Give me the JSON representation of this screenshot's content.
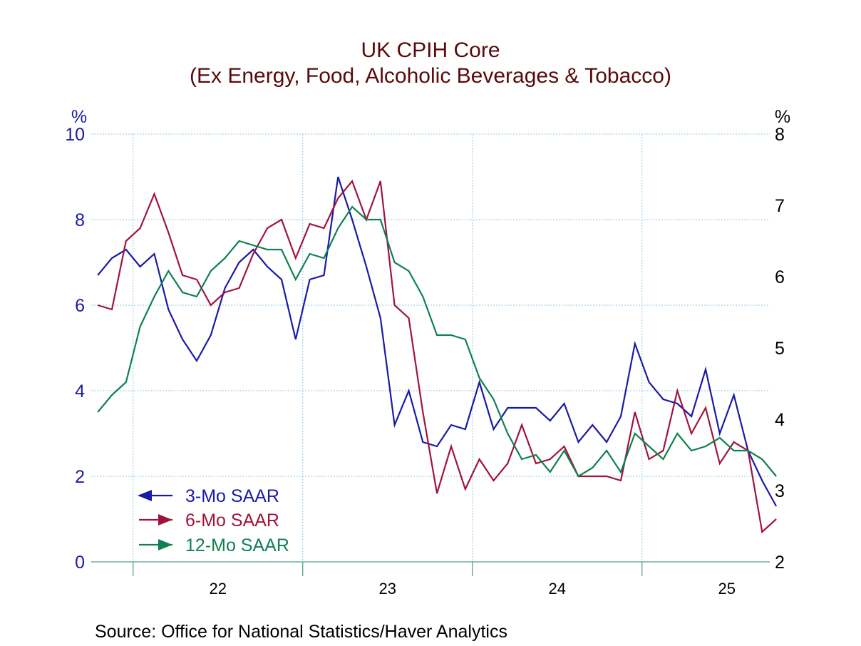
{
  "chart_data": {
    "type": "line",
    "title": "UK CPIH Core",
    "subtitle": "(Ex Energy, Food, Alcoholic Beverages & Tobacco)",
    "ylabel_left": "%",
    "ylabel_right": "%",
    "ylim_left": [
      0,
      10
    ],
    "yticks_left": [
      "0",
      "2",
      "4",
      "6",
      "8",
      "10"
    ],
    "ylim_right": [
      2,
      8
    ],
    "yticks_right": [
      "2",
      "3",
      "4",
      "5",
      "6",
      "7",
      "8"
    ],
    "x_start": 2021.42,
    "x_end": 2025.42,
    "year_boundaries": [
      2021.667,
      2022.667,
      2023.667,
      2024.667
    ],
    "x_tick_labels": [
      {
        "label": "22",
        "x": 2022.167
      },
      {
        "label": "23",
        "x": 2023.167
      },
      {
        "label": "24",
        "x": 2024.167
      },
      {
        "label": "25",
        "x": 2025.167
      }
    ],
    "x_dates": [
      "2021-06",
      "2021-07",
      "2021-08",
      "2021-09",
      "2021-10",
      "2021-11",
      "2021-12",
      "2022-01",
      "2022-02",
      "2022-03",
      "2022-04",
      "2022-05",
      "2022-06",
      "2022-07",
      "2022-08",
      "2022-09",
      "2022-10",
      "2022-11",
      "2022-12",
      "2023-01",
      "2023-02",
      "2023-03",
      "2023-04",
      "2023-05",
      "2023-06",
      "2023-07",
      "2023-08",
      "2023-09",
      "2023-10",
      "2023-11",
      "2023-12",
      "2024-01",
      "2024-02",
      "2024-03",
      "2024-04",
      "2024-05",
      "2024-06",
      "2024-07",
      "2024-08",
      "2024-09",
      "2024-10",
      "2024-11",
      "2024-12",
      "2025-01",
      "2025-02",
      "2025-03",
      "2025-04",
      "2025-05",
      "2025-06"
    ],
    "series": [
      {
        "name": "3-Mo SAAR",
        "axis": "left",
        "color": "#1a1aa6",
        "values": [
          6.7,
          7.1,
          7.3,
          6.9,
          7.2,
          5.9,
          5.2,
          4.7,
          5.3,
          6.4,
          7.0,
          7.3,
          6.9,
          6.6,
          5.2,
          6.6,
          6.7,
          9.0,
          8.0,
          6.9,
          5.7,
          3.2,
          4.0,
          2.8,
          2.7,
          3.2,
          3.1,
          4.2,
          3.1,
          3.6,
          3.6,
          3.6,
          3.3,
          3.7,
          2.8,
          3.2,
          2.8,
          3.4,
          5.1,
          4.2,
          3.8,
          3.7,
          3.4,
          4.5,
          3.0,
          3.9,
          2.6,
          1.9,
          1.3
        ]
      },
      {
        "name": "6-Mo SAAR",
        "axis": "left",
        "color": "#a0143c",
        "values": [
          6.0,
          5.9,
          7.5,
          7.8,
          8.6,
          7.7,
          6.7,
          6.6,
          6.0,
          6.3,
          6.4,
          7.2,
          7.8,
          8.0,
          7.1,
          7.9,
          7.8,
          8.5,
          8.9,
          8.0,
          8.9,
          6.0,
          5.7,
          3.5,
          1.6,
          2.7,
          1.7,
          2.4,
          1.9,
          2.3,
          3.2,
          2.3,
          2.4,
          2.7,
          2.0,
          2.0,
          2.0,
          1.9,
          3.5,
          2.4,
          2.6,
          4.0,
          3.0,
          3.6,
          2.3,
          2.8,
          2.6,
          0.7,
          1.0
        ]
      },
      {
        "name": "12-Mo SAAR",
        "axis": "left",
        "color": "#0f8050",
        "values": [
          3.5,
          3.9,
          4.2,
          5.5,
          6.2,
          6.8,
          6.3,
          6.2,
          6.8,
          7.1,
          7.5,
          7.4,
          7.3,
          7.3,
          6.6,
          7.2,
          7.1,
          7.8,
          8.3,
          8.0,
          8.0,
          7.0,
          6.8,
          6.2,
          5.3,
          5.3,
          5.2,
          4.3,
          3.8,
          3.0,
          2.4,
          2.5,
          2.1,
          2.6,
          2.0,
          2.2,
          2.6,
          2.1,
          3.0,
          2.7,
          2.4,
          3.0,
          2.6,
          2.7,
          2.9,
          2.6,
          2.6,
          2.4,
          2.0
        ]
      }
    ],
    "legend_position": "lower-left"
  },
  "source": "Source:  Office for National Statistics/Haver Analytics"
}
